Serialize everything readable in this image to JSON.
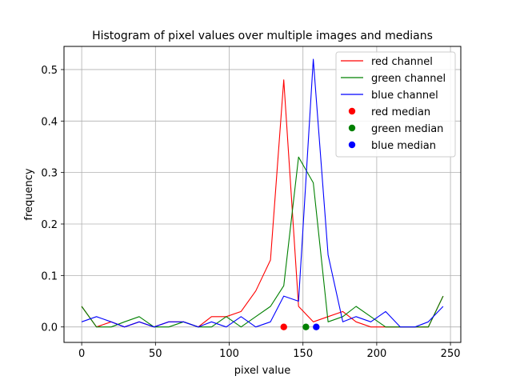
{
  "chart_data": {
    "type": "line",
    "title": "Histogram of pixel values over multiple images and medians",
    "xlabel": "pixel value",
    "ylabel": "frequency",
    "xlim": [
      -12,
      257
    ],
    "ylim": [
      -0.03,
      0.545
    ],
    "x_ticks": [
      0,
      50,
      100,
      150,
      200,
      250
    ],
    "y_ticks": [
      0.0,
      0.1,
      0.2,
      0.3,
      0.4,
      0.5
    ],
    "grid": true,
    "legend_position": "top-right",
    "x": [
      0,
      10,
      20,
      29,
      39,
      49,
      59,
      69,
      79,
      88,
      98,
      108,
      118,
      128,
      137,
      147,
      157,
      167,
      177,
      186,
      196,
      206,
      216,
      226,
      235,
      245
    ],
    "series": [
      {
        "name": "red channel",
        "color": "#ff0000",
        "values": [
          0.04,
          0.0,
          0.01,
          0.0,
          0.01,
          0.0,
          0.01,
          0.01,
          0.0,
          0.02,
          0.02,
          0.03,
          0.07,
          0.13,
          0.48,
          0.04,
          0.01,
          0.02,
          0.03,
          0.01,
          0.0,
          0.0,
          0.0,
          0.0,
          0.0,
          0.06
        ]
      },
      {
        "name": "green channel",
        "color": "#008000",
        "values": [
          0.04,
          0.0,
          0.0,
          0.01,
          0.02,
          0.0,
          0.0,
          0.01,
          0.0,
          0.0,
          0.02,
          0.0,
          0.02,
          0.04,
          0.08,
          0.33,
          0.28,
          0.01,
          0.02,
          0.04,
          0.02,
          0.0,
          0.0,
          0.0,
          0.0,
          0.06
        ]
      },
      {
        "name": "blue channel",
        "color": "#0000ff",
        "values": [
          0.01,
          0.02,
          0.01,
          0.0,
          0.01,
          0.0,
          0.01,
          0.01,
          0.0,
          0.01,
          0.0,
          0.02,
          0.0,
          0.01,
          0.06,
          0.05,
          0.52,
          0.14,
          0.01,
          0.02,
          0.01,
          0.03,
          0.0,
          0.0,
          0.01,
          0.04
        ]
      }
    ],
    "medians": [
      {
        "name": "red median",
        "color": "#ff0000",
        "x": 137,
        "y": 0.0
      },
      {
        "name": "green median",
        "color": "#008000",
        "x": 152,
        "y": 0.0
      },
      {
        "name": "blue median",
        "color": "#0000ff",
        "x": 159,
        "y": 0.0
      }
    ]
  }
}
